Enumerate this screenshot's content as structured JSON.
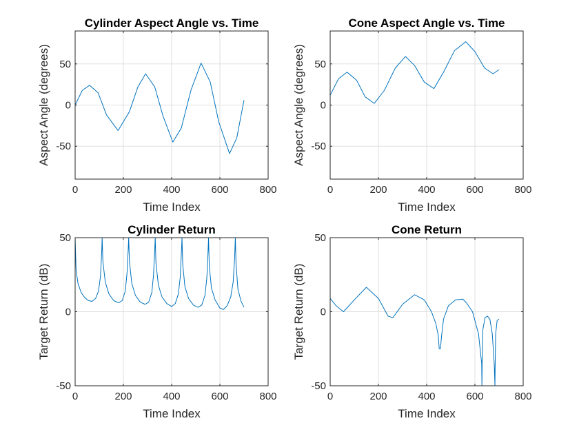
{
  "chart_data": [
    {
      "type": "line",
      "title": "Cylinder Aspect Angle vs. Time",
      "xlabel": "Time Index",
      "ylabel": "Aspect Angle (degrees)",
      "xlim": [
        0,
        800
      ],
      "ylim": [
        -90,
        90
      ],
      "xticks": [
        0,
        200,
        400,
        600,
        800
      ],
      "yticks": [
        -50,
        0,
        50
      ],
      "xtick_labels": [
        "0",
        "200",
        "400",
        "600",
        "800"
      ],
      "ytick_labels": [
        "-50",
        "0",
        "50"
      ],
      "grid": true,
      "series": [
        {
          "name": "Cylinder aspect angle",
          "color": "#0072BD",
          "x": [
            0,
            30,
            60,
            95,
            130,
            178,
            225,
            260,
            292,
            330,
            365,
            405,
            440,
            480,
            522,
            560,
            595,
            640,
            670,
            700
          ],
          "y": [
            0,
            18,
            24,
            15,
            -12,
            -31,
            -8,
            22,
            38,
            22,
            -14,
            -45,
            -28,
            18,
            51,
            28,
            -20,
            -59,
            -40,
            6
          ]
        }
      ]
    },
    {
      "type": "line",
      "title": "Cone Aspect Angle vs. Time",
      "xlabel": "Time Index",
      "ylabel": "Aspect Angle (degrees)",
      "xlim": [
        0,
        800
      ],
      "ylim": [
        -90,
        90
      ],
      "xticks": [
        0,
        200,
        400,
        600,
        800
      ],
      "yticks": [
        -50,
        0,
        50
      ],
      "xtick_labels": [
        "0",
        "200",
        "400",
        "600",
        "800"
      ],
      "ytick_labels": [
        "-50",
        "0",
        "50"
      ],
      "grid": true,
      "series": [
        {
          "name": "Cone aspect angle",
          "color": "#0072BD",
          "x": [
            0,
            35,
            70,
            110,
            145,
            183,
            225,
            270,
            312,
            350,
            390,
            430,
            470,
            515,
            562,
            600,
            640,
            675,
            700
          ],
          "y": [
            12,
            32,
            40,
            30,
            10,
            2,
            18,
            45,
            59,
            48,
            28,
            20,
            40,
            66,
            77,
            65,
            45,
            38,
            43
          ]
        }
      ]
    },
    {
      "type": "line",
      "title": "Cylinder Return",
      "xlabel": "Time Index",
      "ylabel": "Target Return (dB)",
      "xlim": [
        0,
        800
      ],
      "ylim": [
        -50,
        50
      ],
      "xticks": [
        0,
        200,
        400,
        600,
        800
      ],
      "yticks": [
        -50,
        0,
        50
      ],
      "xtick_labels": [
        "0",
        "200",
        "400",
        "600",
        "800"
      ],
      "ytick_labels": [
        "-50",
        "0",
        "50"
      ],
      "grid": true,
      "series": [
        {
          "name": "Cylinder return",
          "color": "#0072BD",
          "x": [
            0,
            4,
            12,
            25,
            40,
            55,
            70,
            85,
            97,
            105,
            110,
            112,
            115,
            125,
            140,
            160,
            180,
            195,
            208,
            215,
            220,
            222,
            225,
            235,
            250,
            270,
            290,
            305,
            318,
            325,
            330,
            332,
            335,
            345,
            360,
            380,
            400,
            415,
            428,
            436,
            441,
            443,
            446,
            455,
            470,
            490,
            510,
            525,
            538,
            546,
            551,
            553,
            556,
            565,
            580,
            600,
            615,
            630,
            645,
            655,
            661,
            664,
            667,
            675,
            688,
            700
          ],
          "y": [
            50,
            28,
            19,
            13,
            9.5,
            7.5,
            7,
            9,
            14,
            24,
            40,
            50,
            34,
            20,
            12,
            7.5,
            6,
            7.5,
            14,
            26,
            42,
            50,
            34,
            19,
            11,
            6.5,
            5,
            6.5,
            13,
            25,
            42,
            50,
            33,
            18,
            10,
            5.5,
            3.5,
            5.5,
            12,
            24,
            42,
            50,
            32,
            17,
            9,
            4.5,
            3,
            4.5,
            11,
            23,
            41,
            50,
            31,
            16,
            8,
            2.5,
            1.5,
            4,
            10,
            20,
            36,
            50,
            32,
            15,
            7,
            3
          ]
        }
      ]
    },
    {
      "type": "line",
      "title": "Cone Return",
      "xlabel": "Time Index",
      "ylabel": "Target Return (dB)",
      "xlim": [
        0,
        800
      ],
      "ylim": [
        -50,
        50
      ],
      "xticks": [
        0,
        200,
        400,
        600,
        800
      ],
      "yticks": [
        -50,
        0,
        50
      ],
      "xtick_labels": [
        "0",
        "200",
        "400",
        "600",
        "800"
      ],
      "ytick_labels": [
        "-50",
        "0",
        "50"
      ],
      "grid": true,
      "series": [
        {
          "name": "Cone return",
          "color": "#0072BD",
          "x": [
            0,
            25,
            55,
            100,
            150,
            200,
            240,
            260,
            300,
            350,
            390,
            420,
            438,
            448,
            452,
            457,
            462,
            470,
            490,
            520,
            550,
            565,
            590,
            615,
            628,
            629,
            630,
            633,
            642,
            652,
            662,
            672,
            680,
            683,
            684,
            686,
            692,
            700
          ],
          "y": [
            9,
            4,
            0,
            8,
            16.5,
            9,
            -3,
            -4,
            5,
            11.5,
            8,
            0,
            -8,
            -16,
            -25,
            -25,
            -16,
            -5,
            4,
            8,
            8.5,
            6,
            0,
            -15,
            -35,
            -50,
            -35,
            -12,
            -4,
            -3,
            -5,
            -15,
            -35,
            -50,
            -35,
            -15,
            -6,
            -5
          ]
        }
      ]
    }
  ]
}
